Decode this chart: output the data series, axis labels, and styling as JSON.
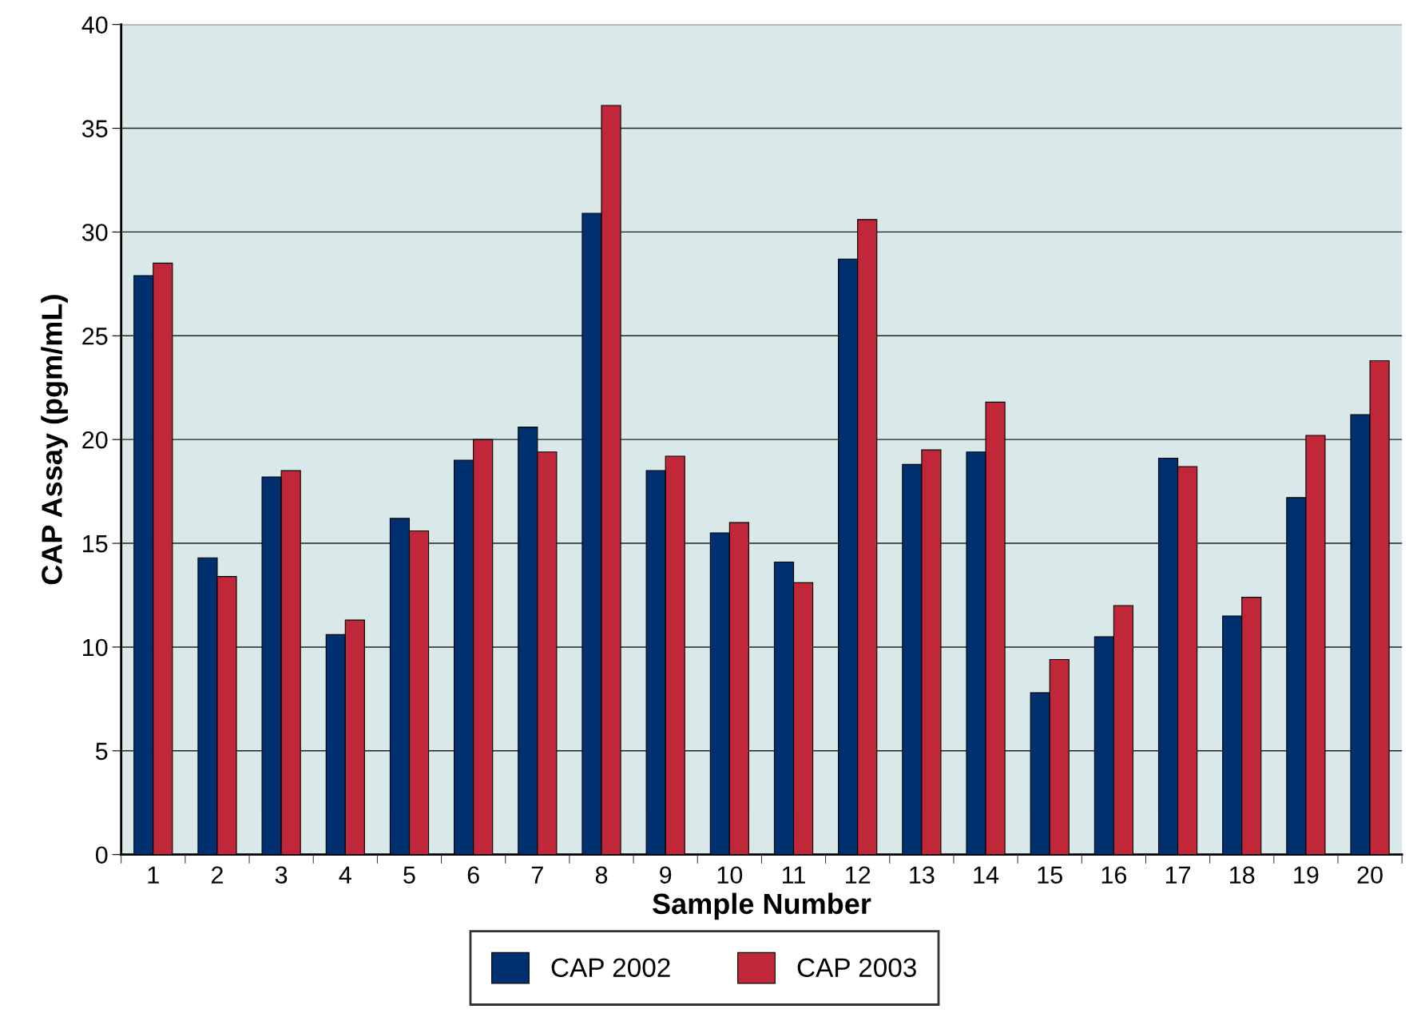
{
  "chart_data": {
    "type": "bar",
    "xlabel": "Sample Number",
    "ylabel": "CAP Assay (pgm/mL)",
    "categories": [
      "1",
      "2",
      "3",
      "4",
      "5",
      "6",
      "7",
      "8",
      "9",
      "10",
      "11",
      "12",
      "13",
      "14",
      "15",
      "16",
      "17",
      "18",
      "19",
      "20"
    ],
    "series": [
      {
        "name": "CAP 2002",
        "color": "#003070",
        "values": [
          27.9,
          14.3,
          18.2,
          10.6,
          16.2,
          19.0,
          20.6,
          30.9,
          18.5,
          15.5,
          14.1,
          28.7,
          18.8,
          19.4,
          7.8,
          10.5,
          19.1,
          11.5,
          17.2,
          21.2
        ]
      },
      {
        "name": "CAP 2003",
        "color": "#c0283a",
        "values": [
          28.5,
          13.4,
          18.5,
          11.3,
          15.6,
          20.0,
          19.4,
          36.1,
          19.2,
          16.0,
          13.1,
          30.6,
          19.5,
          21.8,
          9.4,
          12.0,
          18.7,
          12.4,
          20.2,
          23.8
        ]
      }
    ],
    "ylim": [
      0,
      40
    ],
    "yticks": [
      0,
      5,
      10,
      15,
      20,
      25,
      30,
      35,
      40
    ],
    "grid": "y",
    "legend": "bottom"
  }
}
